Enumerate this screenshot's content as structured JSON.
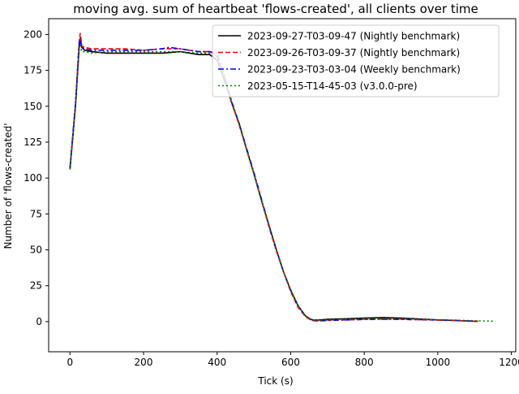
{
  "chart_data": {
    "type": "line",
    "title": "moving avg. sum of heartbeat 'flows-created', all clients over time",
    "xlabel": "Tick (s)",
    "ylabel": "Number of 'flows-created'",
    "xlim": [
      -58,
      1212
    ],
    "ylim": [
      -21,
      211
    ],
    "xticks": [
      0,
      200,
      400,
      600,
      800,
      1000,
      1200
    ],
    "yticks": [
      0,
      25,
      50,
      75,
      100,
      125,
      150,
      175,
      200
    ],
    "grid": false,
    "legend_position": "top-right",
    "series": [
      {
        "name": "2023-09-27-T03-09-47 (Nightly benchmark)",
        "color": "#000000",
        "linestyle": "solid",
        "x": [
          0,
          15,
          25,
          28,
          32,
          40,
          60,
          100,
          150,
          200,
          250,
          300,
          350,
          380,
          400,
          420,
          440,
          460,
          480,
          500,
          520,
          540,
          560,
          580,
          600,
          620,
          640,
          655,
          665,
          680,
          700,
          750,
          800,
          850,
          900,
          950,
          1000,
          1050,
          1100,
          1110
        ],
        "y": [
          106,
          150,
          191,
          197,
          191,
          189,
          188,
          187,
          187,
          187,
          187,
          188,
          186,
          186,
          182,
          168,
          152,
          138,
          120,
          103,
          85,
          68,
          51,
          35,
          22,
          11,
          4,
          1.5,
          1,
          1.2,
          1.6,
          2,
          2.5,
          2.8,
          2.5,
          1.8,
          1.2,
          0.8,
          0.3,
          0.2
        ]
      },
      {
        "name": "2023-09-26-T03-09-37 (Nightly benchmark)",
        "color": "#ff0000",
        "linestyle": "dashed",
        "x": [
          0,
          15,
          25,
          28,
          32,
          40,
          60,
          100,
          150,
          200,
          250,
          300,
          350,
          380,
          400,
          420,
          440,
          460,
          480,
          500,
          520,
          540,
          560,
          580,
          600,
          620,
          640,
          655,
          665,
          680,
          700,
          750,
          800,
          850,
          900,
          950,
          1000,
          1050,
          1100,
          1110
        ],
        "y": [
          107,
          152,
          195,
          201,
          192,
          191,
          190,
          190,
          190,
          189,
          190,
          190,
          188,
          188,
          185,
          170,
          152,
          137,
          120,
          103,
          85,
          67,
          50,
          35,
          21,
          10,
          3.5,
          1,
          0.5,
          0.6,
          0.9,
          1.2,
          1.5,
          1.8,
          1.6,
          1.3,
          1,
          0.7,
          0.3,
          0.2
        ]
      },
      {
        "name": "2023-09-23-T03-03-04 (Weekly benchmark)",
        "color": "#0000ff",
        "linestyle": "dashdot",
        "x": [
          0,
          15,
          25,
          28,
          32,
          40,
          60,
          100,
          150,
          200,
          250,
          270,
          300,
          350,
          380,
          400,
          420,
          440,
          460,
          480,
          500,
          520,
          540,
          560,
          580,
          600,
          620,
          640,
          655,
          665,
          680,
          700,
          750,
          800,
          850,
          900,
          950,
          1000,
          1050,
          1100,
          1110
        ],
        "y": [
          107,
          152,
          193,
          198,
          191,
          190,
          189,
          189,
          189,
          189,
          190,
          191,
          190,
          188,
          188,
          187,
          171,
          153,
          138,
          121,
          104,
          86,
          68,
          51,
          35,
          22,
          11,
          4,
          1.5,
          0.5,
          0.5,
          0.8,
          1.2,
          1.5,
          1.6,
          1.6,
          1.4,
          1.2,
          0.8,
          0.3,
          0.2
        ]
      },
      {
        "name": "2023-05-15-T14-45-03 (v3.0.0-pre)",
        "color": "#008000",
        "linestyle": "dotted",
        "x": [
          0,
          15,
          25,
          28,
          32,
          40,
          60,
          100,
          150,
          200,
          250,
          300,
          350,
          380,
          400,
          420,
          440,
          460,
          480,
          500,
          520,
          540,
          560,
          580,
          600,
          620,
          640,
          655,
          665,
          680,
          700,
          750,
          800,
          850,
          900,
          950,
          1000,
          1050,
          1100,
          1150
        ],
        "y": [
          106,
          150,
          190,
          193,
          188,
          188,
          187,
          188,
          188,
          188,
          188,
          188,
          187,
          187,
          184,
          169,
          152,
          138,
          120,
          103,
          85,
          68,
          51,
          35,
          22,
          11,
          4,
          1.5,
          0.8,
          0.9,
          1.2,
          1.5,
          1.8,
          2,
          1.9,
          1.6,
          1.3,
          1,
          0.6,
          0.3
        ]
      }
    ]
  }
}
